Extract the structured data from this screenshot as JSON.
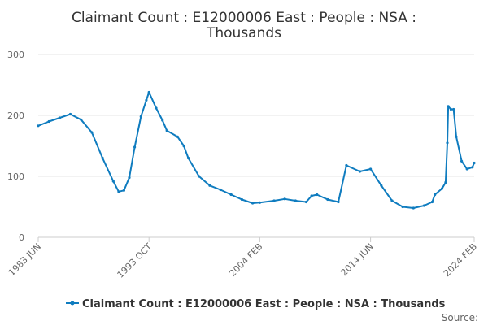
{
  "chart_data": {
    "type": "line",
    "title_lines": [
      "Claimant Count : E12000006 East : People : NSA :",
      "Thousands"
    ],
    "xlabel": "",
    "ylabel": "",
    "ylim": [
      0,
      300
    ],
    "y_ticks": [
      0,
      100,
      200,
      300
    ],
    "x_ticks": [
      "1983 JUN",
      "1993 OCT",
      "2004 FEB",
      "2014 JUN",
      "2024 FEB"
    ],
    "legend_position": "bottom",
    "grid": "horizontal",
    "series": [
      {
        "name": "Claimant Count : E12000006 East : People : NSA : Thousands",
        "color": "#0f7cbf",
        "points": [
          [
            "1983 JUN",
            183
          ],
          [
            "1984 JUN",
            190
          ],
          [
            "1985 JUN",
            196
          ],
          [
            "1986 JUN",
            202
          ],
          [
            "1987 JUN",
            193
          ],
          [
            "1988 JUN",
            172
          ],
          [
            "1989 JUN",
            130
          ],
          [
            "1990 JUN",
            92
          ],
          [
            "1990 DEC",
            75
          ],
          [
            "1991 JUN",
            77
          ],
          [
            "1991 DEC",
            98
          ],
          [
            "1992 JUN",
            148
          ],
          [
            "1993 JAN",
            198
          ],
          [
            "1993 JUL",
            225
          ],
          [
            "1993 OCT",
            238
          ],
          [
            "1994 JUN",
            212
          ],
          [
            "1995 JAN",
            192
          ],
          [
            "1995 JUN",
            175
          ],
          [
            "1996 JUN",
            165
          ],
          [
            "1997 JAN",
            150
          ],
          [
            "1997 JUN",
            130
          ],
          [
            "1998 JUN",
            100
          ],
          [
            "1999 JUN",
            85
          ],
          [
            "2000 JUN",
            78
          ],
          [
            "2001 JUN",
            70
          ],
          [
            "2002 JUN",
            62
          ],
          [
            "2003 JUN",
            56
          ],
          [
            "2004 FEB",
            57
          ],
          [
            "2005 JUN",
            60
          ],
          [
            "2006 JUN",
            63
          ],
          [
            "2007 JUN",
            60
          ],
          [
            "2008 JUN",
            58
          ],
          [
            "2008 DEC",
            68
          ],
          [
            "2009 JUN",
            70
          ],
          [
            "2010 JUN",
            62
          ],
          [
            "2011 JUN",
            58
          ],
          [
            "2012 MAR",
            118
          ],
          [
            "2013 JUN",
            108
          ],
          [
            "2014 JUN",
            112
          ],
          [
            "2015 JUN",
            85
          ],
          [
            "2016 JUN",
            60
          ],
          [
            "2017 JUN",
            50
          ],
          [
            "2018 JUN",
            48
          ],
          [
            "2019 JUN",
            52
          ],
          [
            "2020 MAR",
            58
          ],
          [
            "2020 JUN",
            70
          ],
          [
            "2021 FEB",
            80
          ],
          [
            "2021 JUN",
            90
          ],
          [
            "2021 AUG",
            155
          ],
          [
            "2021 SEP",
            215
          ],
          [
            "2021 DEC",
            210
          ],
          [
            "2022 MAR",
            210
          ],
          [
            "2022 JUN",
            165
          ],
          [
            "2022 DEC",
            125
          ],
          [
            "2023 JUN",
            112
          ],
          [
            "2023 DEC",
            115
          ],
          [
            "2024 FEB",
            122
          ]
        ]
      }
    ]
  },
  "legend": {
    "label": "Claimant Count : E12000006 East : People : NSA : Thousands"
  },
  "source": {
    "label": "Source:"
  }
}
